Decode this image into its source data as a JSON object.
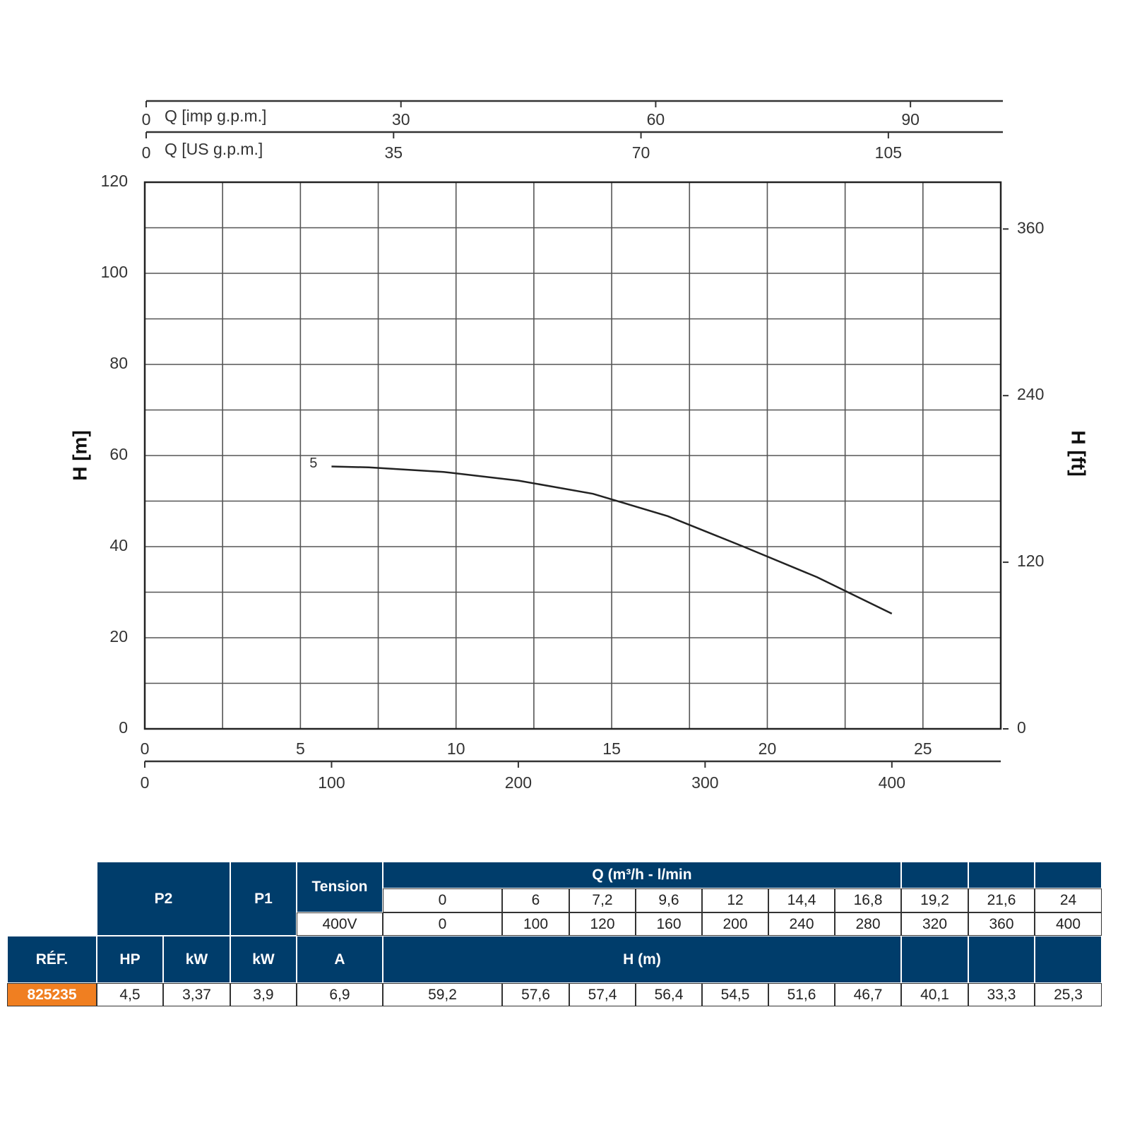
{
  "chart_data": {
    "type": "line",
    "xlim": [
      0,
      27.5
    ],
    "xticks": [
      0,
      5,
      10,
      15,
      20,
      25
    ],
    "x_minor_ticks": [
      2.5,
      7.5,
      12.5,
      17.5,
      22.5
    ],
    "ylim": [
      0,
      120
    ],
    "yticks": [
      0,
      20,
      40,
      60,
      80,
      100,
      120
    ],
    "y_minor_ticks": [
      10,
      30,
      50,
      70,
      90,
      110
    ],
    "y_label": "H [m]",
    "y2_label": "H [ft]",
    "y2lim": [
      0,
      393.7
    ],
    "y2ticks": [
      0,
      120,
      240,
      360
    ],
    "top_axes": [
      {
        "label": "Q [imp g.p.m.]",
        "lim": [
          0,
          100.8
        ],
        "ticks": [
          0,
          30,
          60,
          90
        ]
      },
      {
        "label": "Q [US g.p.m.]",
        "lim": [
          0,
          121.1
        ],
        "ticks": [
          0,
          35,
          70,
          105
        ]
      }
    ],
    "bottom_axis2": {
      "lim": [
        0,
        458.3
      ],
      "ticks": [
        0,
        100,
        200,
        300,
        400
      ]
    },
    "grid": true,
    "x": [
      6,
      7.2,
      9.6,
      12,
      14.4,
      16.8,
      19.2,
      21.6,
      24
    ],
    "series": [
      {
        "name": "5",
        "color": "#222222",
        "values": [
          57.6,
          57.4,
          56.4,
          54.5,
          51.6,
          46.7,
          40.1,
          33.3,
          25.3
        ]
      }
    ]
  },
  "table": {
    "header": {
      "p2": "P2",
      "p1": "P1",
      "tension": "Tension",
      "q": "Q (m³/h - l/min",
      "voltage": "400V",
      "ref": "RÉF.",
      "hp": "HP",
      "kw_p2": "kW",
      "kw_p1": "kW",
      "amps": "A",
      "h": "H (m)"
    },
    "q_m3h": [
      "0",
      "6",
      "7,2",
      "9,6",
      "12",
      "14,4",
      "16,8",
      "19,2",
      "21,6",
      "24"
    ],
    "q_lmin": [
      "0",
      "100",
      "120",
      "160",
      "200",
      "240",
      "280",
      "320",
      "360",
      "400"
    ],
    "rows": [
      [
        "825235",
        "4,5",
        "3,37",
        "3,9",
        "6,9",
        "59,2",
        "57,6",
        "57,4",
        "56,4",
        "54,5",
        "51,6",
        "46,7",
        "40,1",
        "33,3",
        "25,3"
      ]
    ]
  }
}
